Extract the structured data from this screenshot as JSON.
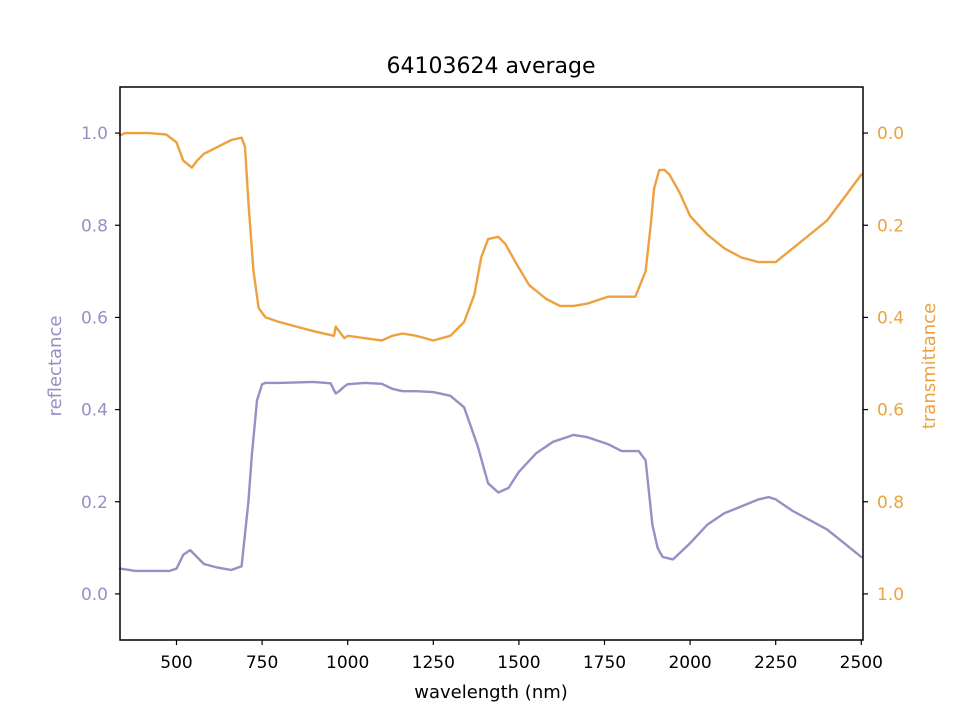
{
  "chart_data": {
    "type": "line",
    "title": "64103624 average",
    "xlabel": "wavelength (nm)",
    "xlim": [
      335,
      2505
    ],
    "x_ticks": [
      500,
      750,
      1000,
      1250,
      1500,
      1750,
      2000,
      2250,
      2500
    ],
    "left_axis": {
      "label": "reflectance",
      "color": "#9491c5",
      "ylim": [
        -0.1,
        1.1
      ],
      "ticks": [
        0.0,
        0.2,
        0.4,
        0.6,
        0.8,
        1.0
      ]
    },
    "right_axis": {
      "label": "transmittance",
      "color": "#eda23f",
      "ylim": [
        1.1,
        -0.1
      ],
      "inverted": true,
      "ticks": [
        0.0,
        0.2,
        0.4,
        0.6,
        0.8,
        1.0
      ]
    },
    "series": [
      {
        "axis": "left",
        "color": "#9491c5",
        "x": [
          335,
          380,
          420,
          480,
          500,
          520,
          540,
          560,
          580,
          620,
          660,
          690,
          710,
          720,
          735,
          750,
          760,
          800,
          900,
          950,
          965,
          975,
          990,
          1000,
          1050,
          1100,
          1130,
          1160,
          1200,
          1250,
          1300,
          1340,
          1380,
          1410,
          1440,
          1470,
          1500,
          1550,
          1600,
          1660,
          1700,
          1760,
          1800,
          1850,
          1870,
          1890,
          1905,
          1912,
          1920,
          1950,
          2000,
          2050,
          2100,
          2150,
          2200,
          2230,
          2250,
          2300,
          2350,
          2400,
          2450,
          2500
        ],
        "y": [
          0.055,
          0.05,
          0.05,
          0.05,
          0.055,
          0.085,
          0.095,
          0.08,
          0.065,
          0.057,
          0.052,
          0.06,
          0.2,
          0.3,
          0.42,
          0.455,
          0.458,
          0.458,
          0.46,
          0.457,
          0.435,
          0.44,
          0.45,
          0.455,
          0.458,
          0.456,
          0.445,
          0.44,
          0.44,
          0.438,
          0.43,
          0.405,
          0.32,
          0.24,
          0.22,
          0.23,
          0.265,
          0.305,
          0.33,
          0.345,
          0.34,
          0.325,
          0.31,
          0.31,
          0.29,
          0.15,
          0.1,
          0.09,
          0.08,
          0.075,
          0.11,
          0.15,
          0.175,
          0.19,
          0.205,
          0.21,
          0.205,
          0.18,
          0.16,
          0.14,
          0.11,
          0.08
        ]
      },
      {
        "axis": "right",
        "color": "#eda23f",
        "x": [
          335,
          350,
          380,
          420,
          470,
          500,
          520,
          545,
          560,
          580,
          620,
          660,
          690,
          700,
          710,
          725,
          740,
          760,
          800,
          900,
          960,
          965,
          975,
          990,
          1000,
          1050,
          1100,
          1130,
          1160,
          1200,
          1250,
          1300,
          1340,
          1370,
          1390,
          1410,
          1440,
          1460,
          1490,
          1530,
          1580,
          1620,
          1660,
          1700,
          1760,
          1800,
          1840,
          1870,
          1885,
          1895,
          1910,
          1925,
          1940,
          1970,
          2000,
          2050,
          2100,
          2150,
          2200,
          2250,
          2300,
          2350,
          2400,
          2450,
          2500
        ],
        "y": [
          0.005,
          0.0,
          0.0,
          0.0,
          0.003,
          0.02,
          0.06,
          0.075,
          0.06,
          0.045,
          0.03,
          0.015,
          0.01,
          0.03,
          0.15,
          0.3,
          0.38,
          0.4,
          0.41,
          0.43,
          0.44,
          0.42,
          0.43,
          0.445,
          0.44,
          0.445,
          0.45,
          0.44,
          0.435,
          0.44,
          0.45,
          0.44,
          0.41,
          0.35,
          0.27,
          0.23,
          0.225,
          0.24,
          0.28,
          0.33,
          0.36,
          0.375,
          0.375,
          0.37,
          0.355,
          0.355,
          0.355,
          0.3,
          0.2,
          0.12,
          0.08,
          0.08,
          0.09,
          0.13,
          0.18,
          0.22,
          0.25,
          0.27,
          0.28,
          0.28,
          0.25,
          0.22,
          0.19,
          0.14,
          0.09
        ]
      }
    ],
    "grid": false,
    "legend": "none"
  }
}
